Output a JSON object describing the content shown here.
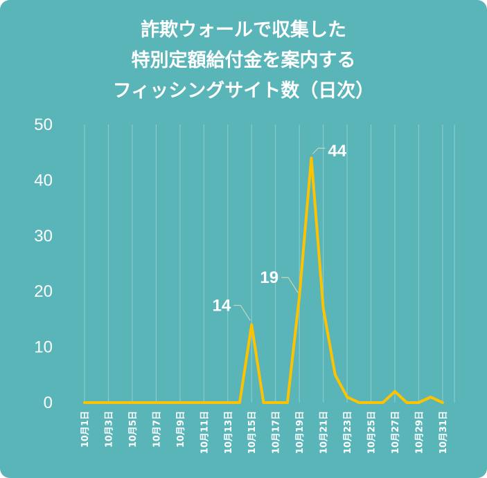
{
  "chart_data": {
    "type": "line",
    "title": [
      "詐欺ウォールで収集した",
      "特別定額給付金を案内する",
      "フィッシングサイト数（日次）"
    ],
    "x": [
      "10月1日",
      "10月2日",
      "10月3日",
      "10月4日",
      "10月5日",
      "10月6日",
      "10月7日",
      "10月8日",
      "10月9日",
      "10月10日",
      "10月11日",
      "10月12日",
      "10月13日",
      "10月14日",
      "10月15日",
      "10月16日",
      "10月17日",
      "10月18日",
      "10月19日",
      "10月20日",
      "10月21日",
      "10月22日",
      "10月23日",
      "10月24日",
      "10月25日",
      "10月26日",
      "10月27日",
      "10月28日",
      "10月29日",
      "10月30日",
      "10月31日"
    ],
    "x_tick_labels": [
      "10月1日",
      "10月3日",
      "10月5日",
      "10月7日",
      "10月9日",
      "10月11日",
      "10月13日",
      "10月15日",
      "10月17日",
      "10月19日",
      "10月21日",
      "10月23日",
      "10月25日",
      "10月27日",
      "10月29日",
      "10月31日"
    ],
    "series": [
      {
        "values": [
          0,
          0,
          0,
          0,
          0,
          0,
          0,
          0,
          0,
          0,
          0,
          0,
          0,
          0,
          14,
          0,
          0,
          0,
          19,
          44,
          17,
          5,
          1,
          0,
          0,
          0,
          2,
          0,
          0,
          1,
          0
        ]
      }
    ],
    "y_ticks": [
      0,
      10,
      20,
      30,
      40,
      50
    ],
    "ylim": [
      0,
      50
    ],
    "data_labels": [
      {
        "day": "10月15日",
        "value": 14,
        "text": "14"
      },
      {
        "day": "10月19日",
        "value": 19,
        "text": "19"
      },
      {
        "day": "10月20日",
        "value": 44,
        "text": "44"
      }
    ],
    "grid": "vertical",
    "colors": {
      "background": "#5ab5b9",
      "line": "#fdc300",
      "grid": "#8fcfd1",
      "text": "#ffffff"
    }
  }
}
